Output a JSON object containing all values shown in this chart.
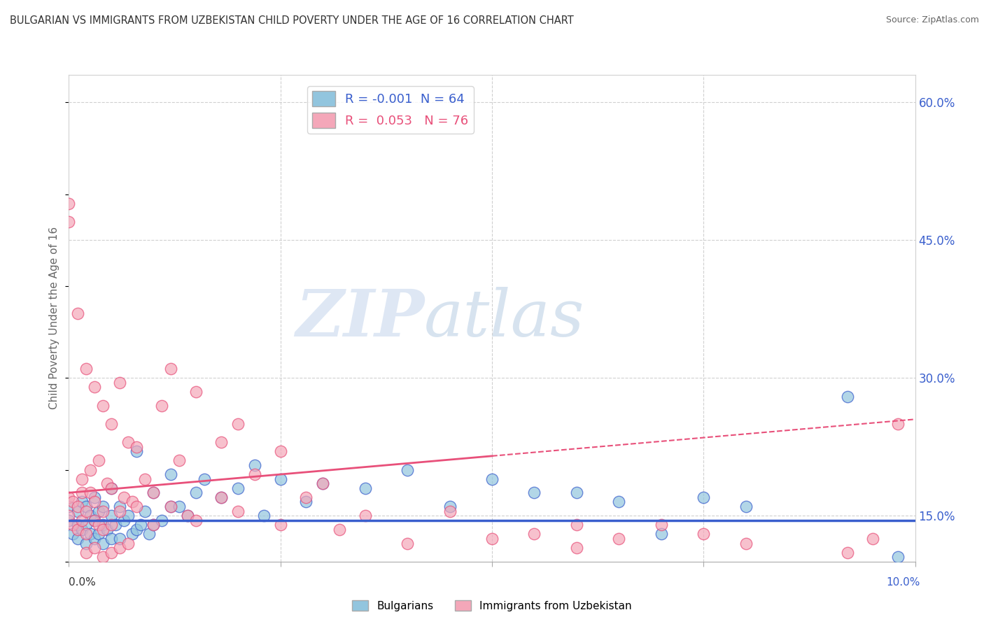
{
  "title": "BULGARIAN VS IMMIGRANTS FROM UZBEKISTAN CHILD POVERTY UNDER THE AGE OF 16 CORRELATION CHART",
  "source": "Source: ZipAtlas.com",
  "ylabel": "Child Poverty Under the Age of 16",
  "xlim": [
    0.0,
    10.0
  ],
  "ylim": [
    10.0,
    63.0
  ],
  "y_ticks_right": [
    15.0,
    30.0,
    45.0,
    60.0
  ],
  "y_tick_labels_right": [
    "15.0%",
    "30.0%",
    "45.0%",
    "60.0%"
  ],
  "legend_label1": "R = -0.001  N = 64",
  "legend_label2": "R =  0.053   N = 76",
  "legend_bottom1": "Bulgarians",
  "legend_bottom2": "Immigrants from Uzbekistan",
  "color_blue": "#92c5de",
  "color_pink": "#f4a7b9",
  "color_blue_trend": "#3a5fcd",
  "color_pink_trend": "#e8507a",
  "watermark_zip": "ZIP",
  "watermark_atlas": "atlas",
  "blue_scatter_x": [
    0.0,
    0.0,
    0.05,
    0.1,
    0.1,
    0.1,
    0.15,
    0.15,
    0.2,
    0.2,
    0.2,
    0.25,
    0.25,
    0.3,
    0.3,
    0.3,
    0.35,
    0.35,
    0.4,
    0.4,
    0.4,
    0.45,
    0.5,
    0.5,
    0.5,
    0.55,
    0.6,
    0.6,
    0.65,
    0.7,
    0.75,
    0.8,
    0.8,
    0.85,
    0.9,
    0.95,
    1.0,
    1.0,
    1.1,
    1.2,
    1.2,
    1.3,
    1.4,
    1.5,
    1.6,
    1.8,
    2.0,
    2.2,
    2.3,
    2.5,
    2.8,
    3.0,
    3.5,
    4.0,
    4.5,
    5.0,
    5.5,
    6.0,
    6.5,
    7.0,
    7.5,
    8.0,
    9.2,
    9.8
  ],
  "blue_scatter_y": [
    14.5,
    16.0,
    13.0,
    12.5,
    14.0,
    15.5,
    13.5,
    16.5,
    12.0,
    14.0,
    16.0,
    13.0,
    15.0,
    12.5,
    14.5,
    17.0,
    13.0,
    15.5,
    12.0,
    14.0,
    16.0,
    13.5,
    12.5,
    15.0,
    18.0,
    14.0,
    12.5,
    16.0,
    14.5,
    15.0,
    13.0,
    13.5,
    22.0,
    14.0,
    15.5,
    13.0,
    14.0,
    17.5,
    14.5,
    16.0,
    19.5,
    16.0,
    15.0,
    17.5,
    19.0,
    17.0,
    18.0,
    20.5,
    15.0,
    19.0,
    16.5,
    18.5,
    18.0,
    20.0,
    16.0,
    19.0,
    17.5,
    17.5,
    16.5,
    13.0,
    17.0,
    16.0,
    28.0,
    10.5
  ],
  "pink_scatter_x": [
    0.0,
    0.0,
    0.0,
    0.0,
    0.05,
    0.05,
    0.1,
    0.1,
    0.1,
    0.15,
    0.15,
    0.15,
    0.2,
    0.2,
    0.2,
    0.25,
    0.25,
    0.3,
    0.3,
    0.3,
    0.35,
    0.35,
    0.4,
    0.4,
    0.4,
    0.45,
    0.5,
    0.5,
    0.5,
    0.6,
    0.6,
    0.65,
    0.7,
    0.75,
    0.8,
    0.8,
    0.9,
    1.0,
    1.0,
    1.1,
    1.2,
    1.2,
    1.3,
    1.4,
    1.5,
    1.5,
    1.8,
    1.8,
    2.0,
    2.0,
    2.2,
    2.5,
    2.5,
    2.8,
    3.0,
    3.2,
    3.5,
    4.0,
    4.5,
    5.0,
    5.5,
    6.0,
    6.0,
    6.5,
    7.0,
    7.5,
    8.0,
    9.2,
    9.5,
    9.8,
    0.2,
    0.3,
    0.4,
    0.5,
    0.6,
    0.7
  ],
  "pink_scatter_y": [
    15.0,
    17.0,
    47.0,
    49.0,
    14.0,
    16.5,
    13.5,
    16.0,
    37.0,
    14.5,
    17.5,
    19.0,
    13.0,
    15.5,
    31.0,
    17.5,
    20.0,
    14.5,
    16.5,
    29.0,
    21.0,
    14.0,
    15.5,
    27.0,
    13.5,
    18.5,
    14.0,
    18.0,
    25.0,
    15.5,
    29.5,
    17.0,
    23.0,
    16.5,
    22.5,
    16.0,
    19.0,
    14.0,
    17.5,
    27.0,
    16.0,
    31.0,
    21.0,
    15.0,
    14.5,
    28.5,
    17.0,
    23.0,
    15.5,
    25.0,
    19.5,
    14.0,
    22.0,
    17.0,
    18.5,
    13.5,
    15.0,
    12.0,
    15.5,
    12.5,
    13.0,
    11.5,
    14.0,
    12.5,
    14.0,
    13.0,
    12.0,
    11.0,
    12.5,
    25.0,
    11.0,
    11.5,
    10.5,
    11.0,
    11.5,
    12.0
  ],
  "grid_color": "#d0d0d0",
  "bg_color": "#ffffff"
}
